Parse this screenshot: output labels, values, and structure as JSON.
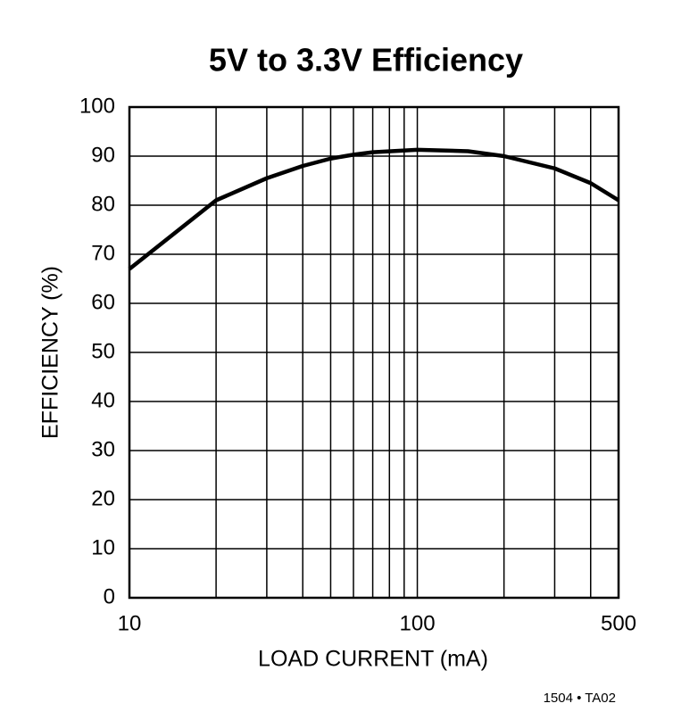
{
  "chart_data": {
    "type": "line",
    "title": "5V to 3.3V Efficiency",
    "x_label": "LOAD CURRENT (mA)",
    "y_label": "EFFICIENCY (%)",
    "footnote": "1504 • TA02",
    "log_x": true,
    "x": [
      10,
      20,
      30,
      40,
      50,
      60,
      70,
      100,
      150,
      200,
      300,
      400,
      500
    ],
    "series": [
      {
        "name": "Efficiency",
        "color": "#000000",
        "values": [
          67,
          81,
          85.5,
          88,
          89.5,
          90.3,
          90.8,
          91.3,
          91,
          90,
          87.5,
          84.5,
          81
        ]
      }
    ],
    "xlim": [
      10,
      500
    ],
    "xticks": [
      10,
      100,
      500
    ],
    "xgrid": [
      20,
      30,
      40,
      50,
      60,
      70,
      80,
      90,
      200,
      300,
      400
    ],
    "ylim": [
      0,
      100
    ],
    "yticks": [
      0,
      10,
      20,
      30,
      40,
      50,
      60,
      70,
      80,
      90,
      100
    ],
    "grid": true
  }
}
